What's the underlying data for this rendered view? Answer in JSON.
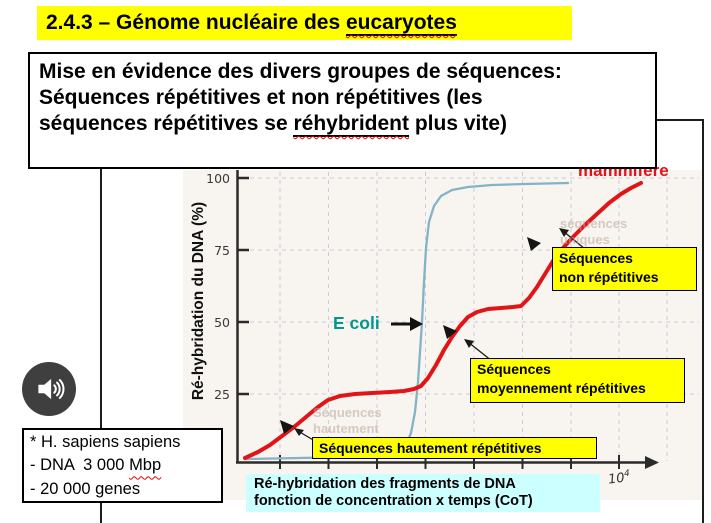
{
  "title": {
    "prefix": "2.4.3 – Génome nucléaire des ",
    "underlined": "eucaryotes"
  },
  "intro": {
    "line1": "Mise en évidence des divers groupes de séquences:",
    "line2": "Séquences répétitives et non répétitives (les",
    "line3_pre": "séquences répétitives se ",
    "line3_underlined": "réhybrident",
    "line3_post": " plus vite)"
  },
  "chart": {
    "y_axis_label": "Ré-hybridation du DNA (%)",
    "y_ticks": [
      "100",
      "75",
      "50",
      "25"
    ],
    "x_end_label_base": "10",
    "x_end_label_exp": "4",
    "mammal_label": "mammifère",
    "ecoli_label": "E coli",
    "caption_line1": "Ré-hybridation des fragments de DNA",
    "caption_line2": "fonction de concentration x temps (CoT)",
    "annotations": {
      "non_rep_l1": "Séquences",
      "non_rep_l2": "non répétitives",
      "moy_l1": "Séquences",
      "moy_l2": "moyennement répétitives",
      "haut": "Séquences hautement répétitives"
    },
    "ghost": {
      "g1_l1": "Séquences",
      "g1_l2": "hautement",
      "g2_l1": "séquences",
      "g2_l2": "uniques"
    }
  },
  "note_box": {
    "line1": "* H. sapiens sapiens",
    "line2_pre": "- DNA  3 000 ",
    "line2_underlined": "Mbp",
    "line3": "- 20 000 genes"
  },
  "icons": {
    "speaker": "speaker-audio-icon"
  },
  "colors": {
    "highlight_yellow": "#ffff00",
    "red_curve": "#e11418",
    "ecoli_curve": "#84b3c7",
    "ecoli_label": "#00978d",
    "cyan_caption": "#ccffff",
    "scan_background": "#f8f4ef",
    "gridline": "#c8ced8",
    "axis": "#2b2b2b"
  },
  "chart_data": {
    "type": "line",
    "title": "Ré-hybridation des fragments de DNA fonction de concentration x temps (CoT)",
    "xlabel": "CoT (concentration x temps, échelle log)",
    "ylabel": "Ré-hybridation du DNA (%)",
    "x_scale": "log",
    "x_tick_labeled": "10^4",
    "ylim": [
      0,
      100
    ],
    "y_ticks": [
      25,
      50,
      75,
      100
    ],
    "legend_position": "annotations-on-plot",
    "grid": true,
    "series": [
      {
        "name": "E coli",
        "color": "#84b3c7",
        "points_log_cot_pct": [
          [
            -3,
            1
          ],
          [
            -1,
            2
          ],
          [
            -0.4,
            8
          ],
          [
            -0.1,
            35
          ],
          [
            0,
            50
          ],
          [
            0.15,
            70
          ],
          [
            0.4,
            88
          ],
          [
            0.8,
            95
          ],
          [
            1.5,
            98
          ],
          [
            3,
            99
          ]
        ]
      },
      {
        "name": "mammifère",
        "color": "#e11418",
        "points_log_cot_pct": [
          [
            -3,
            2
          ],
          [
            -2.6,
            9
          ],
          [
            -2.2,
            16
          ],
          [
            -1.8,
            22
          ],
          [
            -1.2,
            25
          ],
          [
            -0.6,
            25.5
          ],
          [
            -0.1,
            26.5
          ],
          [
            0.2,
            33
          ],
          [
            0.5,
            44
          ],
          [
            0.9,
            52
          ],
          [
            1.4,
            54.5
          ],
          [
            2,
            55.5
          ],
          [
            2.5,
            63
          ],
          [
            3,
            75
          ],
          [
            3.5,
            86
          ],
          [
            4,
            93
          ],
          [
            4.6,
            98
          ]
        ]
      }
    ],
    "regions": [
      {
        "label": "Séquences hautement répétitives",
        "series": "mammifère",
        "segment": "premier plateau (~25%)"
      },
      {
        "label": "Séquences moyennement répétitives",
        "series": "mammifère",
        "segment": "deuxième plateau (~55%)"
      },
      {
        "label": "Séquences non répétitives",
        "series": "mammifère",
        "segment": "montée finale (~55→98%)"
      }
    ],
    "pixel_series": [
      {
        "name": "ecoli-curve",
        "color": "#84b3c7",
        "width": 2.3,
        "points": [
          [
            246,
            459
          ],
          [
            300,
            458
          ],
          [
            350,
            457
          ],
          [
            385,
            455
          ],
          [
            398,
            452
          ],
          [
            406,
            445
          ],
          [
            411,
            433
          ],
          [
            415,
            412
          ],
          [
            418,
            382
          ],
          [
            420,
            352
          ],
          [
            422,
            322
          ],
          [
            424,
            282
          ],
          [
            426,
            248
          ],
          [
            429,
            222
          ],
          [
            434,
            206
          ],
          [
            441,
            196
          ],
          [
            452,
            190
          ],
          [
            468,
            187
          ],
          [
            492,
            185
          ],
          [
            525,
            184
          ],
          [
            568,
            183
          ]
        ]
      },
      {
        "name": "mammal-curve",
        "color": "#e11418",
        "width": 4,
        "points": [
          [
            245,
            458
          ],
          [
            258,
            452
          ],
          [
            270,
            445
          ],
          [
            282,
            436
          ],
          [
            294,
            427
          ],
          [
            306,
            417
          ],
          [
            318,
            407
          ],
          [
            328,
            400
          ],
          [
            340,
            396
          ],
          [
            355,
            394
          ],
          [
            372,
            393
          ],
          [
            390,
            392
          ],
          [
            404,
            391
          ],
          [
            414,
            389
          ],
          [
            421,
            386
          ],
          [
            428,
            378
          ],
          [
            436,
            365
          ],
          [
            444,
            350
          ],
          [
            452,
            337
          ],
          [
            460,
            326
          ],
          [
            468,
            317
          ],
          [
            477,
            312
          ],
          [
            488,
            309
          ],
          [
            501,
            308
          ],
          [
            513,
            307
          ],
          [
            521,
            306
          ],
          [
            529,
            298
          ],
          [
            537,
            287
          ],
          [
            545,
            274
          ],
          [
            553,
            261
          ],
          [
            563,
            248
          ],
          [
            573,
            237
          ],
          [
            585,
            225
          ],
          [
            597,
            214
          ],
          [
            609,
            203
          ],
          [
            621,
            194
          ],
          [
            631,
            188
          ],
          [
            641,
            183
          ]
        ]
      }
    ]
  }
}
